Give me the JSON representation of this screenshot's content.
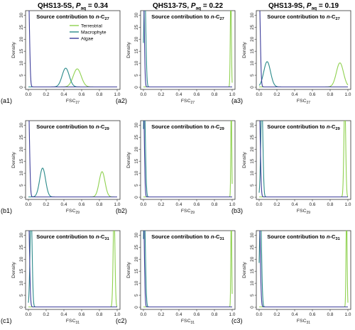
{
  "colors": {
    "terrestrial": "#8fd14f",
    "macrophyte": "#2a8a8a",
    "algae": "#3c3c9a",
    "axis": "#333333"
  },
  "column_titles": [
    {
      "pre": "QHS13-5S, ",
      "p": "P",
      "sub": "aq",
      "post": " = 0.34"
    },
    {
      "pre": "QHS13-7S, ",
      "p": "P",
      "sub": "aq",
      "post": " = 0.22"
    },
    {
      "pre": "QHS13-9S, ",
      "p": "P",
      "sub": "aq",
      "post": " = 0.19"
    }
  ],
  "legend": {
    "entries": [
      {
        "label": "Terrestrial",
        "color_key": "terrestrial"
      },
      {
        "label": "Macrophyte",
        "color_key": "macrophyte"
      },
      {
        "label": "Algae",
        "color_key": "algae"
      }
    ],
    "placement": "top-right of panel a1"
  },
  "chart_data": [
    {
      "id": "a1",
      "type": "line",
      "panel_label": "(a1)",
      "title": {
        "pre": "Source contribution to ",
        "italic": "n",
        "mid": "-C",
        "sub": "27"
      },
      "xlabel": {
        "pre": "FSC",
        "sub": "27"
      },
      "ylabel": "Density",
      "xlim": [
        0,
        1
      ],
      "ylim": [
        0,
        31
      ],
      "xticks": [
        "0.0",
        "0.2",
        "0.4",
        "0.6",
        "0.8",
        "1.0"
      ],
      "yticks": [
        "0",
        "5",
        "10",
        "15",
        "20",
        "25",
        "30"
      ],
      "series": [
        {
          "key": "terrestrial",
          "mean": 0.55,
          "sd": 0.045,
          "peak": 7.5,
          "clip": false
        },
        {
          "key": "macrophyte",
          "mean": 0.42,
          "sd": 0.04,
          "peak": 7.8,
          "clip": false
        },
        {
          "key": "algae",
          "mean": 0.0,
          "sd": 0.012,
          "peak": 40,
          "clip": true
        }
      ]
    },
    {
      "id": "a2",
      "type": "line",
      "panel_label": "(a2)",
      "title": {
        "pre": "Source contribution to ",
        "italic": "n",
        "mid": "-C",
        "sub": "27"
      },
      "xlabel": {
        "pre": "FSC",
        "sub": "27"
      },
      "ylabel": "Density",
      "xlim": [
        0,
        1
      ],
      "ylim": [
        0,
        31
      ],
      "xticks": [
        "0.0",
        "0.2",
        "0.4",
        "0.6",
        "0.8",
        "1.0"
      ],
      "yticks": [
        "0",
        "5",
        "10",
        "15",
        "20",
        "25",
        "30"
      ],
      "series": [
        {
          "key": "terrestrial",
          "mean": 0.985,
          "sd": 0.006,
          "peak": 40,
          "clip": true
        },
        {
          "key": "macrophyte",
          "mean": 0.015,
          "sd": 0.012,
          "peak": 40,
          "clip": true
        },
        {
          "key": "algae",
          "mean": 0.0,
          "sd": 0.01,
          "peak": 40,
          "clip": true
        }
      ]
    },
    {
      "id": "a3",
      "type": "line",
      "panel_label": "(a3)",
      "title": {
        "pre": "Source contribution to ",
        "italic": "n",
        "mid": "-C",
        "sub": "27"
      },
      "xlabel": {
        "pre": "FSC",
        "sub": "27"
      },
      "ylabel": "Density",
      "xlim": [
        0,
        1
      ],
      "ylim": [
        0,
        31
      ],
      "xticks": [
        "0.0",
        "0.2",
        "0.4",
        "0.6",
        "0.8",
        "1.0"
      ],
      "yticks": [
        "0",
        "5",
        "10",
        "15",
        "20",
        "25",
        "30"
      ],
      "series": [
        {
          "key": "terrestrial",
          "mean": 0.91,
          "sd": 0.04,
          "peak": 10,
          "clip": false
        },
        {
          "key": "macrophyte",
          "mean": 0.09,
          "sd": 0.038,
          "peak": 10.5,
          "clip": false
        },
        {
          "key": "algae",
          "mean": 0.0,
          "sd": 0.012,
          "peak": 40,
          "clip": true
        }
      ]
    },
    {
      "id": "b1",
      "type": "line",
      "panel_label": "(b1)",
      "title": {
        "pre": "Source contribution to ",
        "italic": "n",
        "mid": "-C",
        "sub": "29"
      },
      "xlabel": {
        "pre": "FSC",
        "sub": "29"
      },
      "ylabel": "Density",
      "xlim": [
        0,
        1
      ],
      "ylim": [
        0,
        31
      ],
      "xticks": [
        "0.0",
        "0.2",
        "0.4",
        "0.6",
        "0.8",
        "1.0"
      ],
      "yticks": [
        "0",
        "5",
        "10",
        "15",
        "20",
        "25",
        "30"
      ],
      "series": [
        {
          "key": "terrestrial",
          "mean": 0.83,
          "sd": 0.033,
          "peak": 10.5,
          "clip": false
        },
        {
          "key": "macrophyte",
          "mean": 0.16,
          "sd": 0.033,
          "peak": 12,
          "clip": false
        },
        {
          "key": "algae",
          "mean": 0.0,
          "sd": 0.012,
          "peak": 40,
          "clip": true
        }
      ]
    },
    {
      "id": "b2",
      "type": "line",
      "panel_label": "(b2)",
      "title": {
        "pre": "Source contribution to ",
        "italic": "n",
        "mid": "-C",
        "sub": "29"
      },
      "xlabel": {
        "pre": "FSC",
        "sub": "29"
      },
      "ylabel": "Density",
      "xlim": [
        0,
        1
      ],
      "ylim": [
        0,
        31
      ],
      "xticks": [
        "0.0",
        "0.2",
        "0.4",
        "0.6",
        "0.8",
        "1.0"
      ],
      "yticks": [
        "0",
        "5",
        "10",
        "15",
        "20",
        "25",
        "30"
      ],
      "series": [
        {
          "key": "terrestrial",
          "mean": 0.99,
          "sd": 0.005,
          "peak": 40,
          "clip": true
        },
        {
          "key": "macrophyte",
          "mean": 0.01,
          "sd": 0.012,
          "peak": 40,
          "clip": true
        },
        {
          "key": "algae",
          "mean": 0.0,
          "sd": 0.01,
          "peak": 40,
          "clip": true
        }
      ]
    },
    {
      "id": "b3",
      "type": "line",
      "panel_label": "(b3)",
      "title": {
        "pre": "Source contribution to ",
        "italic": "n",
        "mid": "-C",
        "sub": "29"
      },
      "xlabel": {
        "pre": "FSC",
        "sub": "29"
      },
      "ylabel": "Density",
      "xlim": [
        0,
        1
      ],
      "ylim": [
        0,
        31
      ],
      "xticks": [
        "0.0",
        "0.2",
        "0.4",
        "0.6",
        "0.8",
        "1.0"
      ],
      "yticks": [
        "0",
        "5",
        "10",
        "15",
        "20",
        "25",
        "30"
      ],
      "series": [
        {
          "key": "terrestrial",
          "mean": 0.965,
          "sd": 0.01,
          "peak": 40,
          "clip": true
        },
        {
          "key": "macrophyte",
          "mean": 0.03,
          "sd": 0.012,
          "peak": 40,
          "clip": true
        },
        {
          "key": "algae",
          "mean": 0.0,
          "sd": 0.012,
          "peak": 40,
          "clip": true
        }
      ]
    },
    {
      "id": "c1",
      "type": "line",
      "panel_label": "(c1)",
      "title": {
        "pre": "Source contribution to ",
        "italic": "n",
        "mid": "-C",
        "sub": "31"
      },
      "xlabel": {
        "pre": "FSC",
        "sub": "31"
      },
      "ylabel": "Density",
      "xlim": [
        0,
        1
      ],
      "ylim": [
        0,
        31
      ],
      "xticks": [
        "0.0",
        "0.2",
        "0.4",
        "0.6",
        "0.8",
        "1.0"
      ],
      "yticks": [
        "0",
        "5",
        "10",
        "15",
        "20",
        "25",
        "30"
      ],
      "series": [
        {
          "key": "terrestrial",
          "mean": 0.965,
          "sd": 0.01,
          "peak": 40,
          "clip": true
        },
        {
          "key": "macrophyte",
          "mean": 0.03,
          "sd": 0.012,
          "peak": 40,
          "clip": true
        },
        {
          "key": "algae",
          "mean": 0.0,
          "sd": 0.012,
          "peak": 40,
          "clip": true
        }
      ]
    },
    {
      "id": "c2",
      "type": "line",
      "panel_label": "(c2)",
      "title": {
        "pre": "Source contribution to ",
        "italic": "n",
        "mid": "-C",
        "sub": "31"
      },
      "xlabel": {
        "pre": "FSC",
        "sub": "31"
      },
      "ylabel": "Density",
      "xlim": [
        0,
        1
      ],
      "ylim": [
        0,
        31
      ],
      "xticks": [
        "0.0",
        "0.2",
        "0.4",
        "0.6",
        "0.8",
        "1.0"
      ],
      "yticks": [
        "0",
        "5",
        "10",
        "15",
        "20",
        "25",
        "30"
      ],
      "series": [
        {
          "key": "terrestrial",
          "mean": 0.99,
          "sd": 0.005,
          "peak": 40,
          "clip": true
        },
        {
          "key": "macrophyte",
          "mean": 0.01,
          "sd": 0.012,
          "peak": 40,
          "clip": true
        },
        {
          "key": "algae",
          "mean": 0.0,
          "sd": 0.01,
          "peak": 40,
          "clip": true
        }
      ]
    },
    {
      "id": "c3",
      "type": "line",
      "panel_label": "(c3)",
      "title": {
        "pre": "Source contribution to ",
        "italic": "n",
        "mid": "-C",
        "sub": "31"
      },
      "xlabel": {
        "pre": "FSC",
        "sub": "31"
      },
      "ylabel": "Density",
      "xlim": [
        0,
        1
      ],
      "ylim": [
        0,
        31
      ],
      "xticks": [
        "0.0",
        "0.2",
        "0.4",
        "0.6",
        "0.8",
        "1.0"
      ],
      "yticks": [
        "0",
        "5",
        "10",
        "15",
        "20",
        "25",
        "30"
      ],
      "series": [
        {
          "key": "terrestrial",
          "mean": 0.985,
          "sd": 0.006,
          "peak": 40,
          "clip": true
        },
        {
          "key": "macrophyte",
          "mean": 0.015,
          "sd": 0.012,
          "peak": 40,
          "clip": true
        },
        {
          "key": "algae",
          "mean": 0.0,
          "sd": 0.012,
          "peak": 40,
          "clip": true
        }
      ]
    }
  ]
}
